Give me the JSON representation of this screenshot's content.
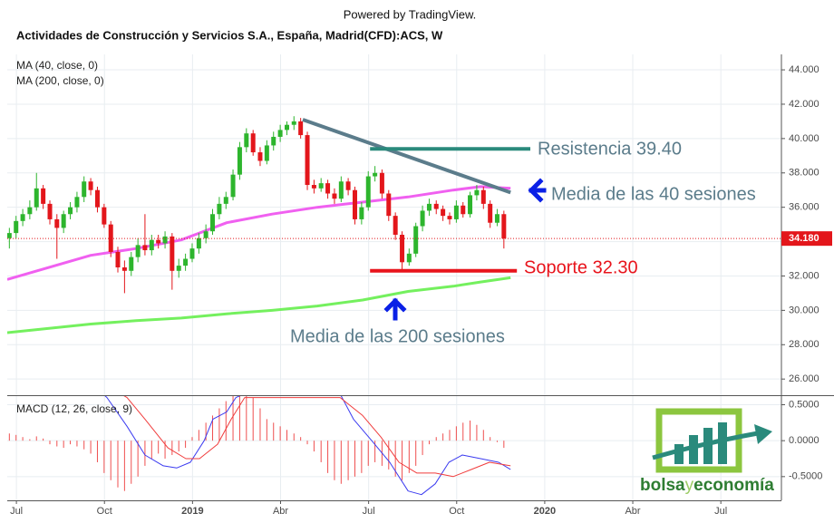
{
  "header": {
    "powered_by": "Powered by TradingView."
  },
  "logo": {
    "part1": "bolsa",
    "part2": "y",
    "part3": "economía"
  },
  "chart_data": [
    {
      "type": "candlestick",
      "title": "Actividades de Construcción y Servicios S.A., España, Madrid(CFD):ACS, W",
      "up_color": "#2db52d",
      "down_color": "#e3161b",
      "x": [
        2018.48,
        2018.499,
        2018.518,
        2018.538,
        2018.557,
        2018.576,
        2018.595,
        2018.615,
        2018.634,
        2018.653,
        2018.672,
        2018.692,
        2018.711,
        2018.73,
        2018.749,
        2018.768,
        2018.788,
        2018.807,
        2018.826,
        2018.845,
        2018.865,
        2018.884,
        2018.903,
        2018.922,
        2018.942,
        2018.961,
        2018.98,
        2018.999,
        2019.018,
        2019.038,
        2019.057,
        2019.076,
        2019.095,
        2019.115,
        2019.134,
        2019.153,
        2019.172,
        2019.192,
        2019.211,
        2019.23,
        2019.249,
        2019.268,
        2019.288,
        2019.307,
        2019.326,
        2019.345,
        2019.365,
        2019.384,
        2019.403,
        2019.422,
        2019.442,
        2019.461,
        2019.48,
        2019.499,
        2019.518,
        2019.538,
        2019.557,
        2019.576,
        2019.595,
        2019.615,
        2019.634,
        2019.653,
        2019.672,
        2019.692,
        2019.711,
        2019.73,
        2019.749,
        2019.768,
        2019.788,
        2019.807,
        2019.826,
        2019.845,
        2019.865,
        2019.884
      ],
      "open": [
        34.2,
        34.5,
        35.2,
        35.6,
        36.0,
        37.1,
        36.2,
        35.3,
        34.8,
        35.6,
        36.0,
        36.6,
        37.5,
        37.0,
        36.0,
        35.0,
        33.4,
        32.5,
        32.3,
        33.1,
        33.8,
        33.5,
        34.1,
        33.9,
        34.3,
        32.3,
        32.6,
        33.0,
        33.6,
        34.2,
        34.6,
        35.6,
        36.2,
        36.6,
        37.9,
        39.5,
        40.3,
        39.2,
        38.7,
        39.6,
        40.1,
        40.5,
        40.8,
        41.0,
        40.2,
        37.3,
        37.1,
        37.4,
        36.8,
        36.5,
        37.5,
        37.0,
        35.3,
        36.0,
        37.8,
        38.0,
        36.8,
        35.5,
        34.4,
        32.8,
        33.3,
        34.9,
        35.8,
        36.2,
        35.9,
        35.5,
        35.3,
        36.1,
        35.6,
        36.7,
        37.0,
        36.2,
        35.1,
        35.6
      ],
      "high": [
        34.8,
        35.5,
        35.9,
        36.4,
        38.0,
        37.3,
        36.4,
        35.6,
        35.8,
        36.3,
        36.9,
        37.8,
        37.7,
        37.2,
        36.2,
        35.2,
        33.7,
        32.9,
        33.4,
        34.2,
        35.6,
        34.4,
        34.4,
        34.6,
        34.5,
        33.0,
        33.3,
        33.9,
        34.5,
        35.0,
        35.9,
        36.6,
        36.9,
        38.2,
        39.8,
        40.6,
        40.5,
        39.5,
        39.9,
        40.4,
        40.8,
        41.0,
        41.3,
        41.2,
        40.4,
        37.6,
        37.7,
        37.6,
        37.1,
        37.8,
        37.7,
        37.2,
        36.3,
        38.1,
        38.4,
        38.2,
        37.0,
        35.7,
        34.6,
        33.6,
        35.1,
        36.1,
        36.5,
        36.4,
        36.1,
        35.7,
        36.4,
        36.3,
        36.9,
        37.3,
        37.2,
        36.4,
        35.9,
        35.8
      ],
      "low": [
        33.6,
        34.2,
        34.9,
        35.3,
        35.8,
        35.9,
        35.0,
        33.0,
        34.5,
        35.3,
        35.7,
        36.3,
        36.7,
        35.7,
        34.8,
        33.1,
        32.2,
        31.0,
        32.0,
        32.8,
        33.2,
        33.2,
        33.6,
        33.6,
        31.2,
        31.9,
        32.3,
        32.8,
        33.3,
        33.9,
        34.4,
        35.3,
        35.9,
        36.4,
        37.6,
        39.2,
        39.0,
        38.4,
        38.5,
        39.3,
        39.8,
        40.2,
        40.5,
        40.0,
        37.0,
        36.8,
        36.9,
        36.5,
        36.2,
        36.3,
        36.7,
        35.0,
        35.0,
        35.8,
        37.5,
        36.5,
        35.2,
        34.1,
        32.3,
        32.6,
        33.1,
        34.6,
        35.5,
        35.6,
        35.2,
        35.0,
        35.1,
        35.4,
        35.4,
        36.4,
        35.9,
        34.8,
        34.9,
        33.6
      ],
      "close": [
        34.5,
        35.2,
        35.6,
        36.0,
        37.1,
        36.2,
        35.3,
        34.8,
        35.6,
        36.0,
        36.6,
        37.5,
        37.0,
        36.0,
        35.0,
        33.4,
        32.5,
        32.3,
        33.1,
        33.8,
        33.5,
        34.1,
        33.9,
        34.3,
        32.3,
        32.6,
        33.0,
        33.6,
        34.2,
        34.6,
        35.6,
        36.2,
        36.6,
        37.9,
        39.5,
        40.3,
        39.2,
        38.7,
        39.6,
        40.1,
        40.5,
        40.8,
        41.0,
        40.2,
        37.3,
        37.1,
        37.4,
        36.8,
        36.5,
        37.5,
        37.0,
        35.3,
        36.0,
        37.8,
        38.0,
        36.8,
        35.5,
        34.4,
        32.8,
        33.3,
        34.9,
        35.8,
        36.2,
        35.9,
        35.5,
        35.3,
        36.1,
        35.6,
        36.7,
        37.0,
        36.2,
        35.1,
        35.6,
        34.18
      ],
      "last_price_label": "34.180",
      "series": [
        {
          "name": "MA (40, close, 0)",
          "color": "#f060f0",
          "x": [
            2018.474,
            2018.711,
            2018.84,
            2018.968,
            2019.097,
            2019.226,
            2019.354,
            2019.483,
            2019.612,
            2019.74,
            2019.818,
            2019.903
          ],
          "values": [
            31.8,
            33.2,
            33.6,
            34.1,
            35.1,
            35.6,
            36.0,
            36.3,
            36.6,
            37.0,
            37.2,
            37.1
          ]
        },
        {
          "name": "MA (200, close, 0)",
          "color": "#74f05e",
          "x": [
            2018.474,
            2018.711,
            2018.84,
            2018.968,
            2019.097,
            2019.226,
            2019.354,
            2019.483,
            2019.612,
            2019.74,
            2019.818,
            2019.903
          ],
          "values": [
            28.7,
            29.2,
            29.4,
            29.55,
            29.8,
            30.0,
            30.25,
            30.6,
            31.1,
            31.4,
            31.65,
            31.9
          ]
        }
      ],
      "lines": [
        {
          "color": "#5b7c8b",
          "x": [
            2019.313,
            2019.903
          ],
          "values": [
            41.1,
            36.86
          ]
        },
        {
          "color": "#2a8a7c",
          "x": [
            2019.504,
            2019.959
          ],
          "values": [
            39.4,
            39.4
          ]
        },
        {
          "color": "#e8141c",
          "x": [
            2019.504,
            2019.921
          ],
          "values": [
            32.3,
            32.3
          ]
        }
      ],
      "notes": [
        {
          "text": "Resistencia 39.40",
          "color": "#5b7c8b"
        },
        {
          "text": "Media de las 40 sesiones",
          "color": "#5b7c8b"
        },
        {
          "text": "Soporte 32.30",
          "color": "#e8141c"
        },
        {
          "text": "Media de las 200 sesiones",
          "color": "#5b7c8b"
        }
      ],
      "xlim": [
        2018.474,
        2020.672
      ],
      "xticks": [
        {
          "value": 2018.5,
          "label": "Jul"
        },
        {
          "value": 2018.75,
          "label": "Oct"
        },
        2019,
        {
          "value": 2019.25,
          "label": "Abr"
        },
        {
          "value": 2019.5,
          "label": "Jul"
        },
        {
          "value": 2019.75,
          "label": "Oct"
        },
        2020,
        {
          "value": 2020.25,
          "label": "Abr"
        },
        {
          "value": 2020.5,
          "label": "Jul"
        }
      ],
      "ylim": [
        25.06,
        44.9
      ],
      "yticks": [
        {
          "value": 26,
          "label": "26.000"
        },
        {
          "value": 28,
          "label": "28.000"
        },
        {
          "value": 30,
          "label": "30.000"
        },
        {
          "value": 32,
          "label": "32.000"
        },
        {
          "value": 34,
          "label": "34.000"
        },
        {
          "value": 36,
          "label": "36.000"
        },
        {
          "value": 38,
          "label": "38.000"
        },
        {
          "value": 40,
          "label": "40.000"
        },
        {
          "value": 42,
          "label": "42.000"
        },
        {
          "value": 44,
          "label": "44.000"
        }
      ],
      "grid": true
    },
    {
      "type": "macd",
      "title": "MACD (12, 26, close, 9)",
      "histogram": {
        "color": "#ef4f4f",
        "values": [
          0.1,
          0.08,
          0.05,
          0.02,
          0.06,
          0.03,
          -0.05,
          -0.08,
          -0.1,
          -0.05,
          -0.08,
          -0.12,
          -0.18,
          -0.3,
          -0.45,
          -0.55,
          -0.65,
          -0.7,
          -0.6,
          -0.5,
          -0.35,
          -0.25,
          -0.18,
          -0.25,
          -0.2,
          -0.15,
          -0.1,
          0.05,
          0.15,
          0.25,
          0.35,
          0.45,
          0.55,
          0.65,
          0.7,
          0.7,
          0.6,
          0.45,
          0.3,
          0.25,
          0.2,
          0.15,
          0.1,
          0.05,
          -0.05,
          -0.15,
          -0.3,
          -0.45,
          -0.55,
          -0.6,
          -0.55,
          -0.5,
          -0.45,
          -0.35,
          -0.3,
          -0.35,
          -0.4,
          -0.5,
          -0.55,
          -0.45,
          -0.35,
          -0.2,
          -0.05,
          0.05,
          0.1,
          0.15,
          0.2,
          0.25,
          0.28,
          0.22,
          0.15,
          0.05,
          -0.02,
          -0.1
        ]
      },
      "series": [
        {
          "color": "#3b3bf0",
          "x": [
            2018.711,
            2018.757,
            2018.814,
            2018.865,
            2018.917,
            2018.955,
            2018.994,
            2019.033,
            2019.058,
            2019.097,
            2019.123,
            2019.148,
            2019.187,
            2019.419,
            2019.457,
            2019.509,
            2019.56,
            2019.612,
            2019.65,
            2019.689,
            2019.728,
            2019.766,
            2019.818,
            2019.869,
            2019.903
          ],
          "values": [
            0.8,
            0.6,
            0.2,
            -0.2,
            -0.35,
            -0.38,
            -0.3,
            0.0,
            0.3,
            0.4,
            0.6,
            0.65,
            0.7,
            0.65,
            0.3,
            0.0,
            -0.3,
            -0.7,
            -0.75,
            -0.6,
            -0.3,
            -0.2,
            -0.25,
            -0.3,
            -0.4
          ]
        },
        {
          "color": "#f03c3c",
          "x": [
            2018.711,
            2018.814,
            2018.865,
            2018.93,
            2018.981,
            2019.02,
            2019.071,
            2019.11,
            2019.148,
            2019.419,
            2019.483,
            2019.535,
            2019.586,
            2019.637,
            2019.689,
            2019.74,
            2019.792,
            2019.843,
            2019.903
          ],
          "values": [
            0.9,
            0.6,
            0.3,
            -0.1,
            -0.25,
            -0.25,
            -0.05,
            0.3,
            0.6,
            0.6,
            0.35,
            0.05,
            -0.3,
            -0.45,
            -0.45,
            -0.5,
            -0.4,
            -0.3,
            -0.35
          ]
        }
      ],
      "ylim": [
        -0.83,
        0.62
      ],
      "yticks": [
        {
          "value": 0.5,
          "label": "0.5000"
        },
        {
          "value": 0,
          "label": "0.0000"
        },
        {
          "value": -0.5,
          "label": "-0.5000"
        }
      ],
      "grid": true
    }
  ]
}
